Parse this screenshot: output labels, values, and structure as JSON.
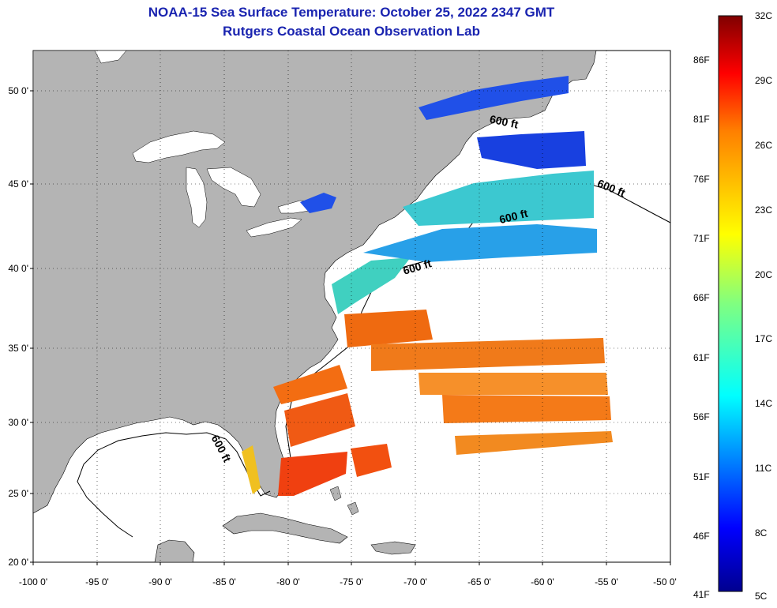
{
  "title": {
    "line1": "NOAA-15 Sea Surface Temperature:  October 25, 2022 2347 GMT",
    "line2": "Rutgers Coastal Ocean Observation Lab"
  },
  "axes": {
    "lat_ticks": [
      "50 0'",
      "45 0'",
      "40 0'",
      "35 0'",
      "30 0'",
      "25 0'",
      "20 0'"
    ],
    "lon_ticks": [
      "-100 0'",
      "-95 0'",
      "-90 0'",
      "-85 0'",
      "-80 0'",
      "-75 0'",
      "-70 0'",
      "-65 0'",
      "-60 0'",
      "-55 0'",
      "-50 0'"
    ],
    "lat_range": [
      20,
      52.5
    ],
    "lon_range": [
      -100,
      -50
    ],
    "grid": "dotted"
  },
  "colorbar": {
    "fahrenheit": [
      "86F",
      "81F",
      "76F",
      "71F",
      "66F",
      "61F",
      "56F",
      "51F",
      "46F",
      "41F"
    ],
    "celsius": [
      "32C",
      "29C",
      "26C",
      "23C",
      "20C",
      "17C",
      "14C",
      "11C",
      "8C",
      "5C"
    ],
    "range_c": [
      5,
      32
    ]
  },
  "isobath": {
    "label": "600 ft",
    "labels": [
      "600 ft",
      "600 ft",
      "600 ft",
      "600 ft",
      "600 ft"
    ]
  },
  "colors": {
    "land": "#b4b4b4",
    "ocean": "#ffffff",
    "title": "#1a24b0"
  }
}
